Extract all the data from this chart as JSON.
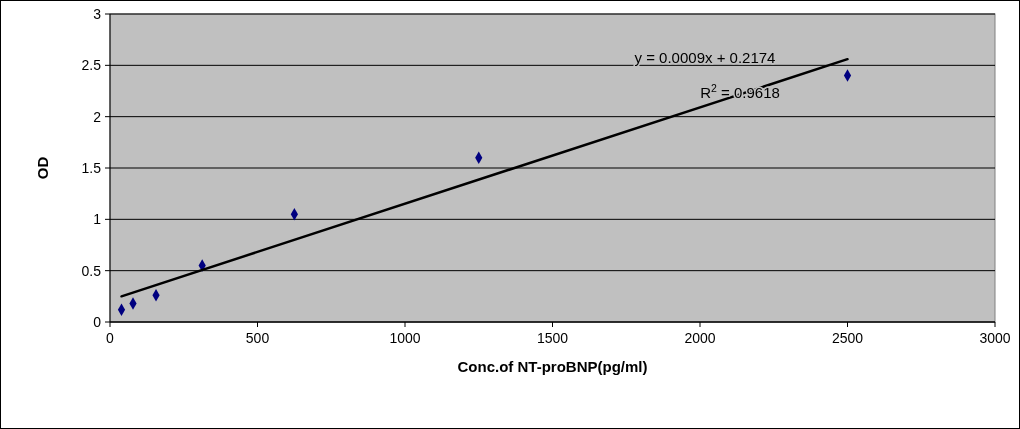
{
  "chart_data": {
    "type": "scatter",
    "xlabel": "Conc.of NT-proBNP(pg/ml)",
    "ylabel": "OD",
    "xlim": [
      0,
      3000
    ],
    "xticks": [
      0,
      500,
      1000,
      1500,
      2000,
      2500,
      3000
    ],
    "ylim": [
      0,
      3
    ],
    "yticks": [
      0,
      0.5,
      1,
      1.5,
      2,
      2.5,
      3
    ],
    "grid": "y",
    "marker": "diamond",
    "series": [
      {
        "color": "#000080",
        "x": [
          39,
          78,
          156,
          312.5,
          625,
          1250,
          2500
        ],
        "values": [
          0.12,
          0.18,
          0.26,
          0.55,
          1.05,
          1.6,
          2.4
        ]
      },
      {
        "type": "line",
        "marker": "none",
        "color": "#000000",
        "x": [
          39,
          2500
        ],
        "values": [
          0.25,
          2.56
        ]
      }
    ],
    "annotations": [
      "y = 0.0009x + 0.2174",
      "R$^{2}$ = 0.9618"
    ]
  }
}
